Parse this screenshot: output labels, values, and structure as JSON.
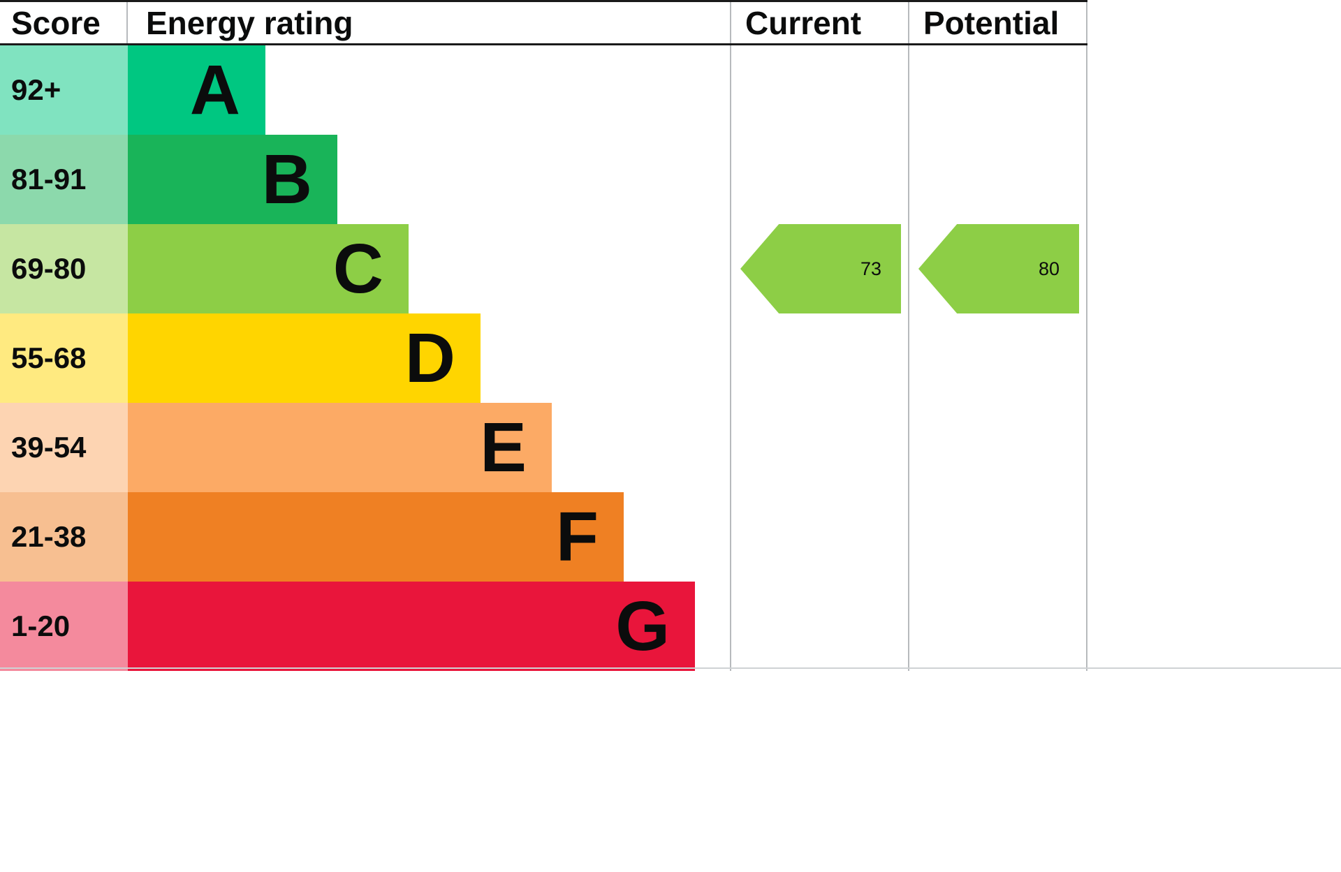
{
  "header": {
    "score": "Score",
    "energy_rating": "Energy rating",
    "current": "Current",
    "potential": "Potential"
  },
  "chart_data": {
    "type": "bar",
    "title": "Energy rating",
    "orientation": "horizontal",
    "legend": "none",
    "grid": "off",
    "bands": [
      {
        "score": "92+",
        "letter": "A",
        "color": "#00c781",
        "score_color": "#80e3c0"
      },
      {
        "score": "81-91",
        "letter": "B",
        "color": "#19b459",
        "score_color": "#8cd9ac"
      },
      {
        "score": "69-80",
        "letter": "C",
        "color": "#8dce46",
        "score_color": "#c6e6a2"
      },
      {
        "score": "55-68",
        "letter": "D",
        "color": "#ffd500",
        "score_color": "#ffea80"
      },
      {
        "score": "39-54",
        "letter": "E",
        "color": "#fcaa65",
        "score_color": "#fdd4b2"
      },
      {
        "score": "21-38",
        "letter": "F",
        "color": "#ef8023",
        "score_color": "#f7bf91"
      },
      {
        "score": "1-20",
        "letter": "G",
        "color": "#e9153b",
        "score_color": "#f48a9d"
      }
    ],
    "current": {
      "value": 73,
      "band": "C",
      "color": "#8dce46"
    },
    "potential": {
      "value": 80,
      "band": "C",
      "color": "#8dce46"
    }
  }
}
